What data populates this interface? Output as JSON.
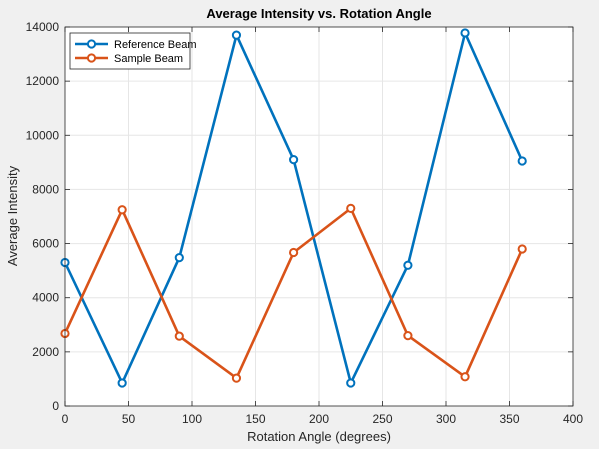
{
  "chart_data": {
    "type": "line",
    "title": "Average Intensity vs. Rotation Angle",
    "xlabel": "Rotation Angle (degrees)",
    "ylabel": "Average Intensity",
    "xlim": [
      0,
      400
    ],
    "ylim": [
      0,
      14000
    ],
    "xticks": [
      0,
      50,
      100,
      150,
      200,
      250,
      300,
      350,
      400
    ],
    "yticks": [
      0,
      2000,
      4000,
      6000,
      8000,
      10000,
      12000,
      14000
    ],
    "grid": true,
    "legend_position": "top-left",
    "x": [
      0,
      45,
      90,
      135,
      180,
      225,
      270,
      315,
      360
    ],
    "series": [
      {
        "name": "Reference Beam",
        "color": "#0072bd",
        "marker": "circle",
        "values": [
          5300,
          850,
          5480,
          13700,
          9100,
          850,
          5200,
          13780,
          9050
        ]
      },
      {
        "name": "Sample Beam",
        "color": "#d95319",
        "marker": "circle",
        "values": [
          2680,
          7250,
          2580,
          1030,
          5670,
          7300,
          2600,
          1080,
          5800
        ]
      }
    ]
  }
}
